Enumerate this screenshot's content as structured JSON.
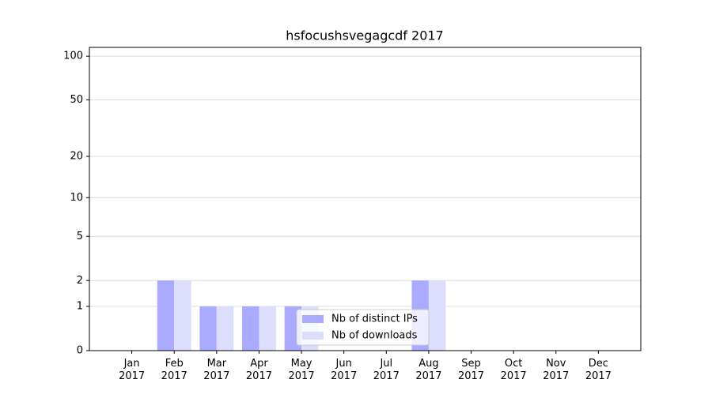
{
  "chart_data": {
    "type": "bar",
    "title": "hsfocushsvegagcdf 2017",
    "categories": [
      "Jan\n2017",
      "Feb\n2017",
      "Mar\n2017",
      "Apr\n2017",
      "May\n2017",
      "Jun\n2017",
      "Jul\n2017",
      "Aug\n2017",
      "Sep\n2017",
      "Oct\n2017",
      "Nov\n2017",
      "Dec\n2017"
    ],
    "series": [
      {
        "name": "Nb of distinct IPs",
        "color": "#aaaaff",
        "values": [
          0,
          2,
          1,
          1,
          1,
          0,
          0,
          2,
          0,
          0,
          0,
          0
        ]
      },
      {
        "name": "Nb of downloads",
        "color": "#ddddfd",
        "values": [
          0,
          2,
          1,
          1,
          1,
          0,
          0,
          2,
          0,
          0,
          0,
          0
        ]
      }
    ],
    "yscale": "log1p",
    "ylim": [
      0,
      115
    ],
    "yticks": [
      0,
      1,
      2,
      5,
      10,
      20,
      50,
      100
    ],
    "grid": true,
    "legend": "lower center"
  }
}
